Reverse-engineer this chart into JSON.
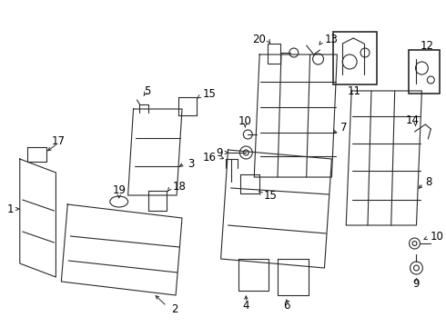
{
  "bg_color": "#ffffff",
  "line_color": "#2a2a2a",
  "label_color": "#000000",
  "font_size": 8.5
}
